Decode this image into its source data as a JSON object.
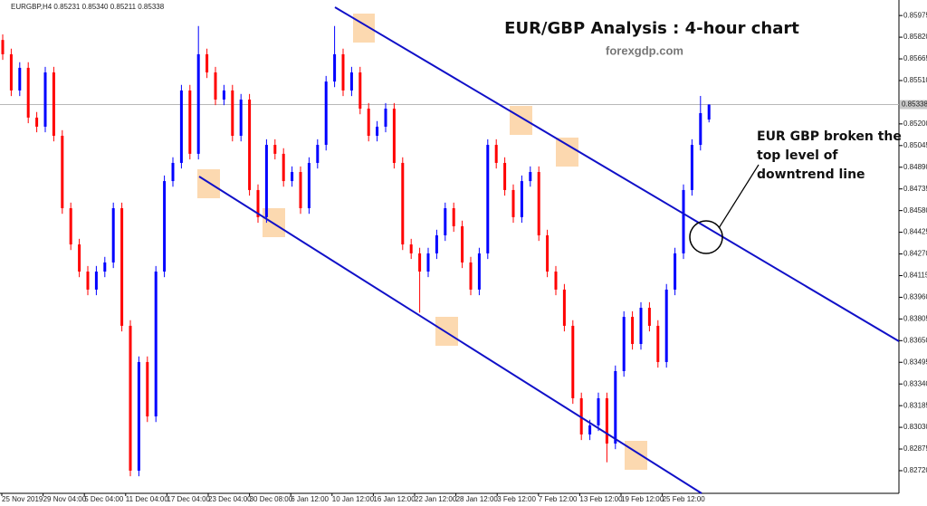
{
  "chart_data": {
    "type": "candlestick",
    "header": "EURGBP,H4  0.85231 0.85340 0.85211 0.85338",
    "title": "EUR/GBP Analysis : 4-hour chart",
    "subtitle": "forexgdp.com",
    "annotation": "EUR GBP broken the top level of downtrend line",
    "up_color": "#0000ff",
    "down_color": "#ff0000",
    "price_line": 0.85338,
    "ylim": [
      0.82558,
      0.86086
    ],
    "yticks": [
      0.85975,
      {
        "value": 0.8582,
        "label": "0.85820"
      },
      0.85665,
      {
        "value": 0.8551,
        "label": "0.85510"
      },
      {
        "value": 0.852,
        "label": "0.85200"
      },
      0.85045,
      {
        "value": 0.8489,
        "label": "0.84890"
      },
      0.84735,
      {
        "value": 0.8458,
        "label": "0.84580"
      },
      0.84425,
      {
        "value": 0.8427,
        "label": "0.84270"
      },
      0.84115,
      {
        "value": 0.8396,
        "label": "0.83960"
      },
      0.83805,
      {
        "value": 0.8365,
        "label": "0.83650"
      },
      0.83495,
      {
        "value": 0.8334,
        "label": "0.83340"
      },
      0.83185,
      {
        "value": 0.8303,
        "label": "0.83030"
      },
      0.82875,
      {
        "value": 0.8272,
        "label": "0.82720"
      }
    ],
    "x_labels": [
      "25 Nov 2019",
      "29 Nov 04:00",
      "5 Dec 04:00",
      "11 Dec 04:00",
      "17 Dec 04:00",
      "23 Dec 04:00",
      "30 Dec 08:00",
      "6 Jan 12:00",
      "10 Jan 12:00",
      "16 Jan 12:00",
      "22 Jan 12:00",
      "28 Jan 12:00",
      "3 Feb 12:00",
      "7 Feb 12:00",
      "13 Feb 12:00",
      "19 Feb 12:00",
      "25 Feb 12:00"
    ],
    "open": [
      0.858,
      0.85698,
      0.85439,
      0.85601,
      0.85245,
      0.8518,
      0.85568,
      0.85115,
      0.84597,
      0.84338,
      0.84144,
      0.84015,
      0.84144,
      0.84209,
      0.84597,
      0.83756,
      0.8272,
      0.83497,
      0.83108,
      0.84144,
      0.84791,
      0.84921,
      0.85439,
      0.84986,
      0.85698,
      0.85568,
      0.85374,
      0.85439,
      0.85115,
      0.85374,
      0.84727,
      0.84533,
      0.8505,
      0.84986,
      0.84791,
      0.84856,
      0.84597,
      0.84921,
      0.8505,
      0.85503,
      0.85698,
      0.85439,
      0.85568,
      0.85309,
      0.85115,
      0.8518,
      0.85309,
      0.84921,
      0.84338,
      0.84274,
      0.84144,
      0.84274,
      0.84403,
      0.84597,
      0.84468,
      0.84209,
      0.84015,
      0.84274,
      0.8505,
      0.84921,
      0.84727,
      0.84533,
      0.84791,
      0.84856,
      0.84403,
      0.84144,
      0.84015,
      0.83756,
      0.83238,
      0.82979,
      0.83044,
      0.83238,
      0.82914,
      0.83432,
      0.8382,
      0.83626,
      0.83885,
      0.83756,
      0.83497,
      0.84015,
      0.84274,
      0.84727,
      0.8505,
      0.85231
    ],
    "high": [
      0.8584,
      0.85738,
      0.85641,
      0.85641,
      0.85285,
      0.85608,
      0.85608,
      0.85155,
      0.84637,
      0.84378,
      0.84184,
      0.84184,
      0.84249,
      0.84637,
      0.84637,
      0.83796,
      0.83537,
      0.83537,
      0.84184,
      0.84831,
      0.84961,
      0.85479,
      0.85479,
      0.859,
      0.85738,
      0.85608,
      0.85479,
      0.85479,
      0.85414,
      0.85414,
      0.84767,
      0.8509,
      0.8509,
      0.85026,
      0.84896,
      0.84896,
      0.84961,
      0.8509,
      0.85543,
      0.859,
      0.85738,
      0.85608,
      0.85608,
      0.85349,
      0.8522,
      0.85349,
      0.85349,
      0.84961,
      0.84378,
      0.84314,
      0.84314,
      0.84443,
      0.84637,
      0.84637,
      0.84508,
      0.84249,
      0.84314,
      0.8509,
      0.8509,
      0.84961,
      0.84767,
      0.84831,
      0.84896,
      0.84896,
      0.84443,
      0.84184,
      0.84055,
      0.83796,
      0.83278,
      0.83084,
      0.83278,
      0.83278,
      0.83472,
      0.8386,
      0.8386,
      0.83925,
      0.83925,
      0.83796,
      0.84055,
      0.84314,
      0.84767,
      0.8509,
      0.854,
      0.8534
    ],
    "low": [
      0.85658,
      0.85399,
      0.85399,
      0.85205,
      0.8514,
      0.8514,
      0.85075,
      0.84557,
      0.84298,
      0.84104,
      0.83975,
      0.83975,
      0.84104,
      0.84169,
      0.83716,
      0.8268,
      0.8268,
      0.83068,
      0.83068,
      0.84104,
      0.84751,
      0.84881,
      0.84946,
      0.84946,
      0.85528,
      0.85334,
      0.85334,
      0.85075,
      0.85075,
      0.84687,
      0.84493,
      0.84493,
      0.84946,
      0.84751,
      0.84751,
      0.84557,
      0.84557,
      0.84881,
      0.8501,
      0.85463,
      0.85399,
      0.85399,
      0.85269,
      0.85075,
      0.85075,
      0.8514,
      0.84881,
      0.84298,
      0.84234,
      0.8385,
      0.84104,
      0.84234,
      0.84363,
      0.84428,
      0.84169,
      0.83975,
      0.83975,
      0.84234,
      0.84881,
      0.84687,
      0.84493,
      0.84493,
      0.84751,
      0.84363,
      0.84104,
      0.83975,
      0.83716,
      0.83198,
      0.82939,
      0.82939,
      0.83004,
      0.8278,
      0.82874,
      0.83392,
      0.83586,
      0.83586,
      0.83716,
      0.83457,
      0.83457,
      0.83975,
      0.84234,
      0.84687,
      0.8501,
      0.85211
    ],
    "close": [
      0.85698,
      0.85439,
      0.85601,
      0.85245,
      0.8518,
      0.85568,
      0.85115,
      0.84597,
      0.84338,
      0.84144,
      0.84015,
      0.84144,
      0.84209,
      0.84597,
      0.83756,
      0.8272,
      0.83497,
      0.83108,
      0.84144,
      0.84791,
      0.84921,
      0.85439,
      0.84986,
      0.85698,
      0.85568,
      0.85374,
      0.85439,
      0.85115,
      0.85374,
      0.84727,
      0.84533,
      0.8505,
      0.84986,
      0.84791,
      0.84856,
      0.84597,
      0.84921,
      0.8505,
      0.85503,
      0.85698,
      0.85439,
      0.85568,
      0.85309,
      0.85115,
      0.8518,
      0.85309,
      0.84921,
      0.84338,
      0.84274,
      0.84144,
      0.84274,
      0.84403,
      0.84597,
      0.84468,
      0.84209,
      0.84015,
      0.84274,
      0.8505,
      0.84921,
      0.84727,
      0.84533,
      0.84791,
      0.84856,
      0.84403,
      0.84144,
      0.84015,
      0.83756,
      0.83238,
      0.82979,
      0.83044,
      0.83238,
      0.82914,
      0.83432,
      0.8382,
      0.83626,
      0.83885,
      0.83756,
      0.83497,
      0.84015,
      0.84274,
      0.84727,
      0.8505,
      0.85277,
      0.85338
    ]
  }
}
